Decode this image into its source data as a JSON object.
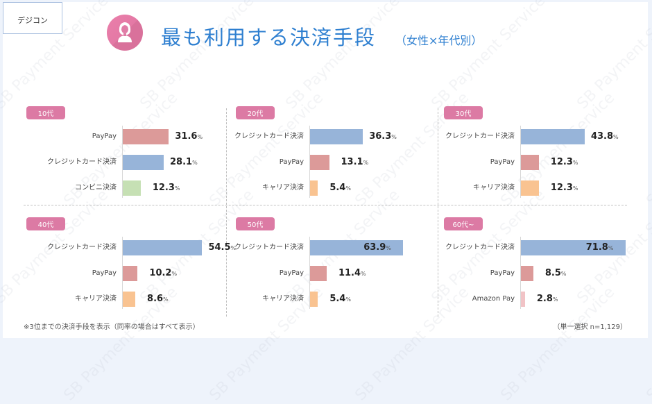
{
  "header": {
    "tag": "デジコン",
    "title": "最も利用する決済手段",
    "subtitle": "（女性×年代別）",
    "icon": "woman-avatar-icon"
  },
  "colors": {
    "credit": "#97b4d9",
    "paypay": "#dc9a99",
    "conveni": "#c6e0b4",
    "carrier": "#f9c391",
    "amazon": "#f1c3c6",
    "badge": "#dc7aa4",
    "title": "#2e7fd0"
  },
  "chart_data": {
    "type": "bar",
    "orientation": "horizontal",
    "title": "最も利用する決済手段（女性×年代別）",
    "note": "※3位までの決済手段を表示（同率の場合はすべて表示）",
    "sample": "（単一選択 n=1,129）",
    "unit": "%",
    "panels": [
      {
        "age": "10代",
        "items": [
          {
            "label": "PayPay",
            "value": 31.6,
            "color_key": "paypay"
          },
          {
            "label": "クレジットカード決済",
            "value": 28.1,
            "color_key": "credit"
          },
          {
            "label": "コンビニ決済",
            "value": 12.3,
            "color_key": "conveni"
          }
        ]
      },
      {
        "age": "20代",
        "items": [
          {
            "label": "クレジットカード決済",
            "value": 36.3,
            "color_key": "credit"
          },
          {
            "label": "PayPay",
            "value": 13.1,
            "color_key": "paypay"
          },
          {
            "label": "キャリア決済",
            "value": 5.4,
            "color_key": "carrier"
          }
        ]
      },
      {
        "age": "30代",
        "items": [
          {
            "label": "クレジットカード決済",
            "value": 43.8,
            "color_key": "credit"
          },
          {
            "label": "PayPay",
            "value": 12.3,
            "color_key": "paypay"
          },
          {
            "label": "キャリア決済",
            "value": 12.3,
            "color_key": "carrier"
          }
        ]
      },
      {
        "age": "40代",
        "items": [
          {
            "label": "クレジットカード決済",
            "value": 54.5,
            "color_key": "credit"
          },
          {
            "label": "PayPay",
            "value": 10.2,
            "color_key": "paypay"
          },
          {
            "label": "キャリア決済",
            "value": 8.6,
            "color_key": "carrier"
          }
        ]
      },
      {
        "age": "50代",
        "items": [
          {
            "label": "クレジットカード決済",
            "value": 63.9,
            "color_key": "credit",
            "label_inside": true
          },
          {
            "label": "PayPay",
            "value": 11.4,
            "color_key": "paypay"
          },
          {
            "label": "キャリア決済",
            "value": 5.4,
            "color_key": "carrier"
          }
        ]
      },
      {
        "age": "60代~",
        "items": [
          {
            "label": "クレジットカード決済",
            "value": 71.8,
            "color_key": "credit",
            "label_inside": true
          },
          {
            "label": "PayPay",
            "value": 8.5,
            "color_key": "paypay"
          },
          {
            "label": "Amazon Pay",
            "value": 2.8,
            "color_key": "amazon"
          }
        ]
      }
    ]
  },
  "footer": {
    "note": "※3位までの決済手段を表示（同率の場合はすべて表示）",
    "sample": "（単一選択 n=1,129）"
  },
  "watermark": "SB Payment Service"
}
